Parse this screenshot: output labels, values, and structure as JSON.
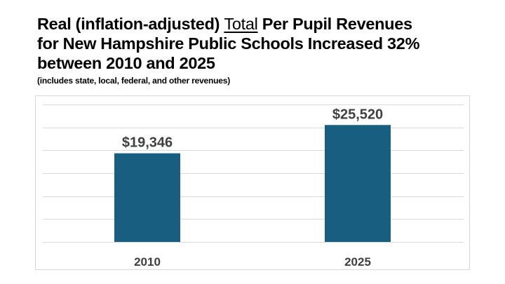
{
  "title": {
    "line1_pre": "Real (inflation-adjusted) ",
    "line1_underlined": "Total",
    "line1_post": " Per Pupil Revenues",
    "line2": "for New Hampshire Public Schools Increased 32%",
    "line3": "between 2010 and 2025"
  },
  "subtitle": "(includes state, local, federal, and other revenues)",
  "colors": {
    "bar": "#175e80",
    "label": "#404040",
    "grid": "#d9d9d9"
  },
  "chart_data": {
    "type": "bar",
    "title": "Real (inflation-adjusted) Total Per Pupil Revenues for New Hampshire Public Schools Increased 32% between 2010 and 2025",
    "subtitle": "(includes state, local, federal, and other revenues)",
    "categories": [
      "2010",
      "2025"
    ],
    "values": [
      19346,
      25520
    ],
    "data_labels": [
      "$19,346",
      "$25,520"
    ],
    "xlabel": "",
    "ylabel": "",
    "ylim": [
      0,
      30000
    ],
    "y_gridlines": [
      0,
      5000,
      10000,
      15000,
      20000,
      25000,
      30000
    ],
    "grid": true,
    "y_axis_labels_visible": false,
    "legend": "none"
  }
}
